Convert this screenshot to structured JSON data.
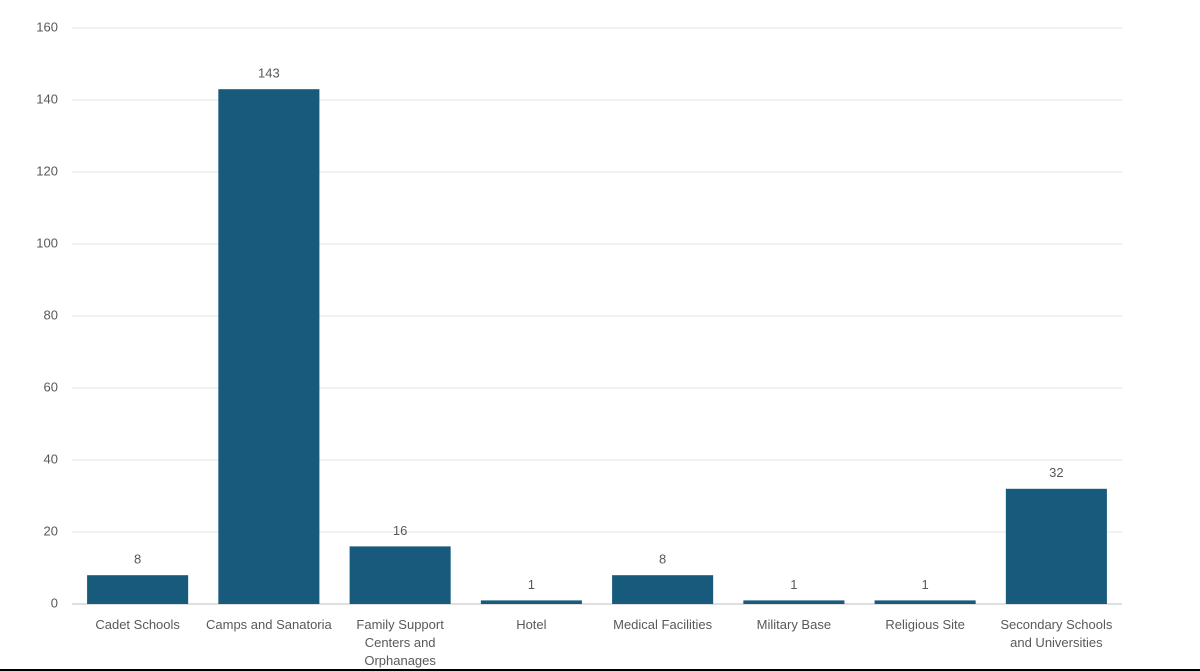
{
  "chart_data": {
    "type": "bar",
    "categories": [
      "Cadet Schools",
      "Camps and Sanatoria",
      "Family Support Centers and Orphanages",
      "Hotel",
      "Medical Facilities",
      "Military Base",
      "Religious Site",
      "Secondary Schools and Universities"
    ],
    "values": [
      8,
      143,
      16,
      1,
      8,
      1,
      1,
      32
    ],
    "color": "#175a7c",
    "ylim": [
      0,
      160
    ],
    "yticks": [
      0,
      20,
      40,
      60,
      80,
      100,
      120,
      140,
      160
    ],
    "grid": true
  }
}
